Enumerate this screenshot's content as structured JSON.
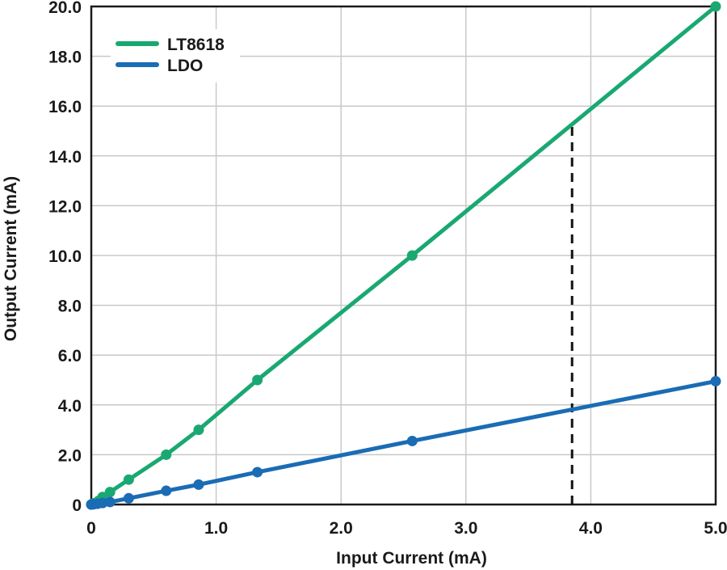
{
  "chart_data": {
    "type": "line",
    "title": "",
    "xlabel": "Input Current (mA)",
    "ylabel": "Output Current (mA)",
    "xlim": [
      0,
      5
    ],
    "ylim": [
      0,
      20
    ],
    "x_ticks": [
      0,
      1,
      2,
      3,
      4,
      5
    ],
    "x_tick_labels": [
      "0",
      "1.0",
      "2.0",
      "3.0",
      "4.0",
      "5.0"
    ],
    "y_ticks": [
      0,
      2,
      4,
      6,
      8,
      10,
      12,
      14,
      16,
      18,
      20
    ],
    "y_tick_labels": [
      "0",
      "2.0",
      "4.0",
      "6.0",
      "8.0",
      "10.0",
      "12.0",
      "14.0",
      "16.0",
      "18.0",
      "20.0"
    ],
    "grid": true,
    "legend_position": "top-left",
    "series": [
      {
        "name": "LT8618",
        "color": "#1aa872",
        "points": [
          [
            0,
            0
          ],
          [
            0.02,
            0.05
          ],
          [
            0.06,
            0.15
          ],
          [
            0.09,
            0.3
          ],
          [
            0.15,
            0.5
          ],
          [
            0.3,
            1.0
          ],
          [
            0.6,
            2.0
          ],
          [
            0.86,
            3.0
          ],
          [
            1.33,
            5.0
          ],
          [
            2.57,
            10.0
          ],
          [
            5.0,
            20.0
          ]
        ]
      },
      {
        "name": "LDO",
        "color": "#1a6cb4",
        "points": [
          [
            0,
            0
          ],
          [
            0.02,
            0.01
          ],
          [
            0.05,
            0.03
          ],
          [
            0.09,
            0.06
          ],
          [
            0.15,
            0.1
          ],
          [
            0.3,
            0.25
          ],
          [
            0.6,
            0.55
          ],
          [
            0.86,
            0.8
          ],
          [
            1.33,
            1.3
          ],
          [
            2.57,
            2.55
          ],
          [
            5.0,
            4.95
          ]
        ]
      }
    ],
    "annotations": [
      {
        "type": "vertical-dashed-line",
        "x": 3.85,
        "y_from": 0,
        "y_to": 15.4,
        "color": "#111111"
      }
    ]
  }
}
